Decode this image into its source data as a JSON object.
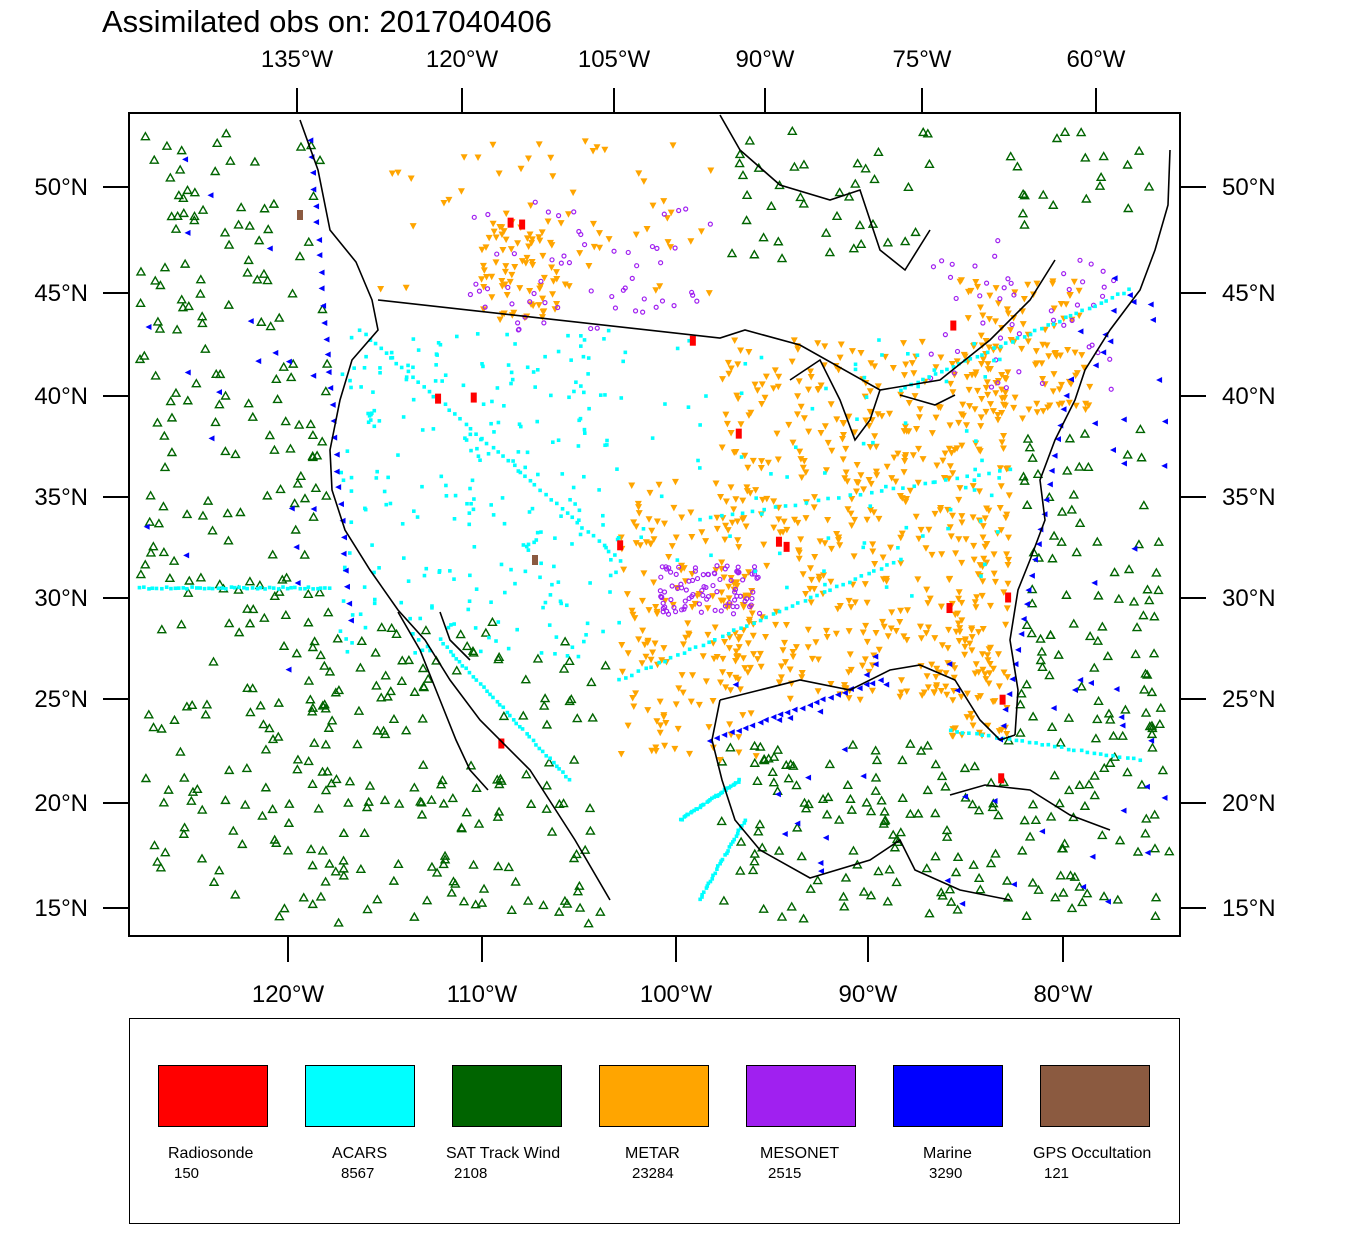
{
  "title": "Assimilated obs on: 2017040406",
  "axes": {
    "top_lon_labels": [
      "135°W",
      "120°W",
      "105°W",
      "90°W",
      "75°W",
      "60°W"
    ],
    "bottom_lon_labels": [
      "120°W",
      "110°W",
      "100°W",
      "90°W",
      "80°W"
    ],
    "lat_labels": [
      "50°N",
      "45°N",
      "40°N",
      "35°N",
      "30°N",
      "25°N",
      "20°N",
      "15°N"
    ]
  },
  "legend": [
    {
      "name": "Radiosonde",
      "count": "150",
      "color": "#ff0000"
    },
    {
      "name": "ACARS",
      "count": "8567",
      "color": "#00ffff"
    },
    {
      "name": "SAT Track Wind",
      "count": "2108",
      "color": "#006400"
    },
    {
      "name": "METAR",
      "count": "23284",
      "color": "#ffa500"
    },
    {
      "name": "MESONET",
      "count": "2515",
      "color": "#a020f0"
    },
    {
      "name": "Marine",
      "count": "3290",
      "color": "#0000ff"
    },
    {
      "name": "GPS Occultation",
      "count": "121",
      "color": "#8b5a40"
    }
  ]
}
